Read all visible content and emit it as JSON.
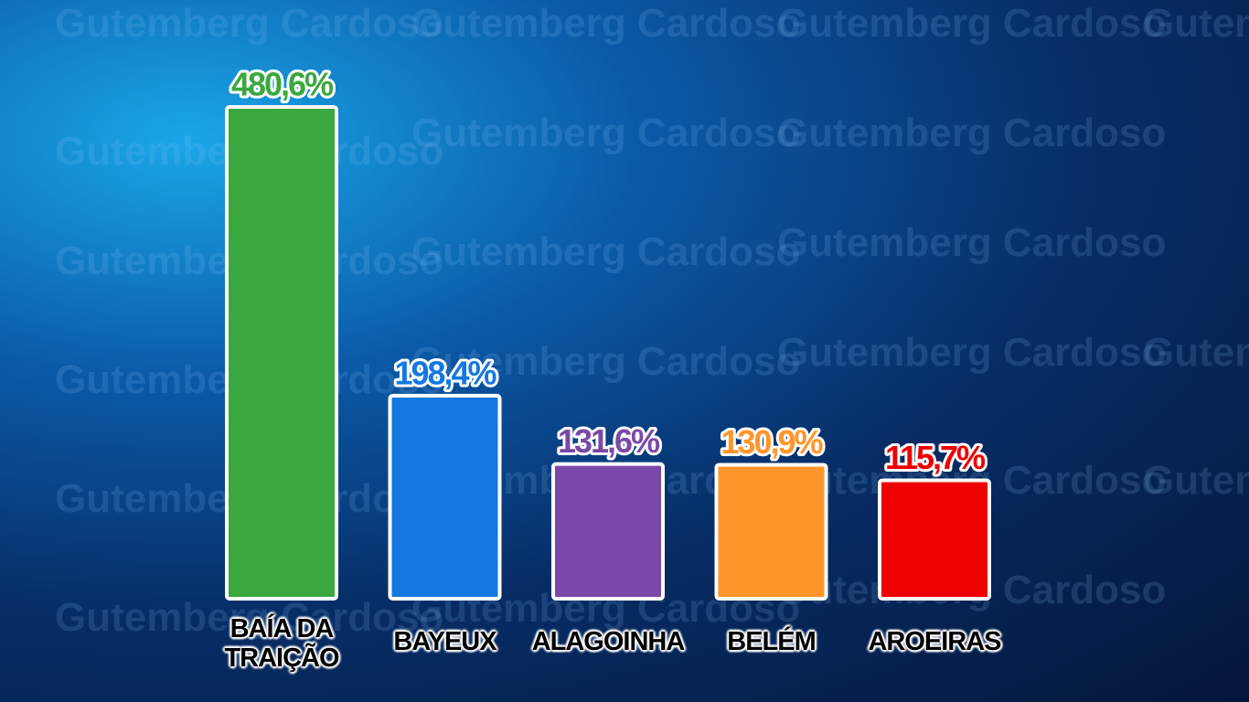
{
  "chart_data": {
    "type": "bar",
    "categories": [
      "BAÍA DA TRAIÇÃO",
      "BAYEUX",
      "ALAGOINHA",
      "BELÉM",
      "AROEIRAS"
    ],
    "values": [
      480.6,
      198.4,
      131.6,
      130.9,
      115.7
    ],
    "value_labels": [
      "480,6%",
      "198,4%",
      "131,6%",
      "130,9%",
      "115,7%"
    ],
    "colors": [
      "#3aa83f",
      "#1478e0",
      "#7a48a8",
      "#ff962c",
      "#ee0000"
    ],
    "watermark": "Gutemberg Cardoso"
  }
}
